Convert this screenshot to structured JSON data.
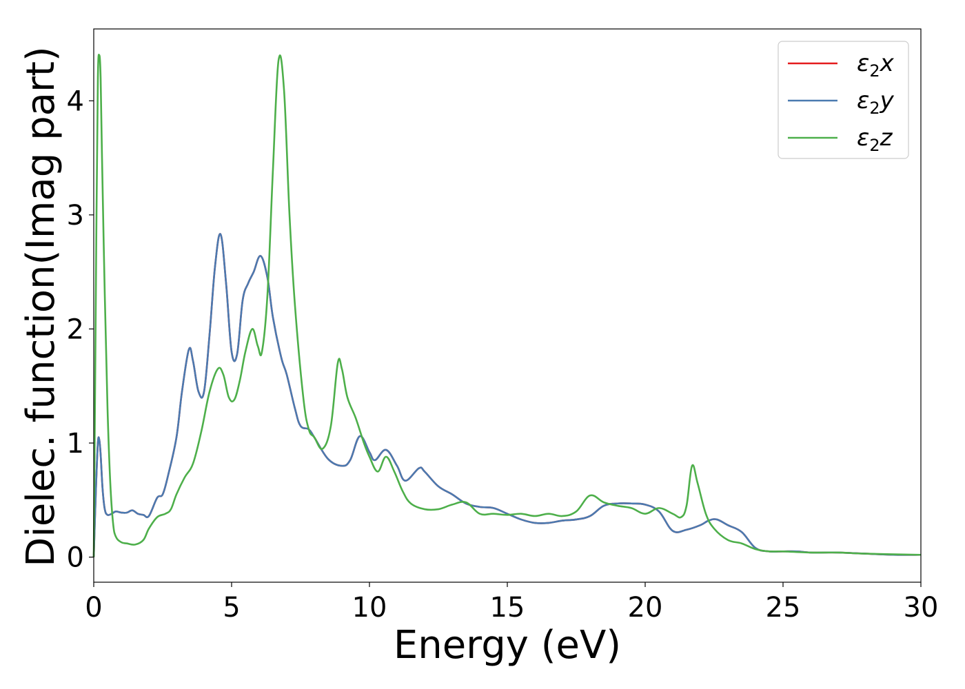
{
  "chart_data": {
    "type": "line",
    "title": "",
    "xlabel": "Energy (eV)",
    "ylabel": "Dielec. function(Imag part)",
    "xlim": [
      0,
      30
    ],
    "ylim": [
      -0.22,
      4.63
    ],
    "xticks": [
      0,
      5,
      10,
      15,
      20,
      25,
      30
    ],
    "yticks": [
      0,
      1,
      2,
      3,
      4
    ],
    "grid": false,
    "legend_position": "top-right",
    "series": [
      {
        "name": "ε₂x",
        "legend_base": "ε",
        "legend_sub": "2",
        "legend_suffix": "x",
        "color": "#e41a1c",
        "x": [
          0,
          0.08,
          0.15,
          0.2,
          0.25,
          0.32,
          0.4,
          0.5,
          0.65,
          0.8,
          1.0,
          1.2,
          1.4,
          1.6,
          1.8,
          2.0,
          2.3,
          2.5,
          2.7,
          3.0,
          3.2,
          3.45,
          3.6,
          3.8,
          4.0,
          4.2,
          4.4,
          4.6,
          4.8,
          5.0,
          5.2,
          5.4,
          5.6,
          5.8,
          6.05,
          6.3,
          6.5,
          6.8,
          7.0,
          7.3,
          7.5,
          7.8,
          8.0,
          8.5,
          9.0,
          9.3,
          9.65,
          10.0,
          10.2,
          10.6,
          11.0,
          11.3,
          11.8,
          12.0,
          12.5,
          13.0,
          13.5,
          14.0,
          14.5,
          15.0,
          15.5,
          16.0,
          16.5,
          17.0,
          17.5,
          18.0,
          18.5,
          19.0,
          19.5,
          20.0,
          20.5,
          21.0,
          21.5,
          22.0,
          22.3,
          22.6,
          23.0,
          23.5,
          24.0,
          24.5,
          25.0,
          25.5,
          26.0,
          26.5,
          27.0,
          28.0,
          29.0,
          30.0
        ],
        "y": [
          0,
          0.6,
          1.0,
          1.03,
          0.9,
          0.6,
          0.42,
          0.37,
          0.38,
          0.4,
          0.39,
          0.39,
          0.41,
          0.38,
          0.37,
          0.36,
          0.52,
          0.55,
          0.72,
          1.05,
          1.45,
          1.82,
          1.72,
          1.45,
          1.45,
          1.95,
          2.55,
          2.83,
          2.4,
          1.8,
          1.78,
          2.25,
          2.4,
          2.5,
          2.64,
          2.45,
          2.1,
          1.75,
          1.6,
          1.3,
          1.15,
          1.12,
          1.05,
          0.86,
          0.8,
          0.85,
          1.06,
          0.92,
          0.85,
          0.94,
          0.8,
          0.67,
          0.78,
          0.75,
          0.62,
          0.55,
          0.47,
          0.44,
          0.43,
          0.38,
          0.33,
          0.3,
          0.3,
          0.32,
          0.33,
          0.36,
          0.45,
          0.47,
          0.47,
          0.46,
          0.4,
          0.23,
          0.24,
          0.28,
          0.32,
          0.33,
          0.28,
          0.22,
          0.08,
          0.05,
          0.05,
          0.05,
          0.04,
          0.04,
          0.04,
          0.03,
          0.02,
          0.02
        ]
      },
      {
        "name": "ε₂y",
        "legend_base": "ε",
        "legend_sub": "2",
        "legend_suffix": "y",
        "color": "#4a7ab0",
        "x": [
          0,
          0.08,
          0.15,
          0.2,
          0.25,
          0.32,
          0.4,
          0.5,
          0.65,
          0.8,
          1.0,
          1.2,
          1.4,
          1.6,
          1.8,
          2.0,
          2.3,
          2.5,
          2.7,
          3.0,
          3.2,
          3.45,
          3.6,
          3.8,
          4.0,
          4.2,
          4.4,
          4.6,
          4.8,
          5.0,
          5.2,
          5.4,
          5.6,
          5.8,
          6.05,
          6.3,
          6.5,
          6.8,
          7.0,
          7.3,
          7.5,
          7.8,
          8.0,
          8.5,
          9.0,
          9.3,
          9.65,
          10.0,
          10.2,
          10.6,
          11.0,
          11.3,
          11.8,
          12.0,
          12.5,
          13.0,
          13.5,
          14.0,
          14.5,
          15.0,
          15.5,
          16.0,
          16.5,
          17.0,
          17.5,
          18.0,
          18.5,
          19.0,
          19.5,
          20.0,
          20.5,
          21.0,
          21.5,
          22.0,
          22.3,
          22.6,
          23.0,
          23.5,
          24.0,
          24.5,
          25.0,
          25.5,
          26.0,
          26.5,
          27.0,
          28.0,
          29.0,
          30.0
        ],
        "y": [
          0,
          0.6,
          1.0,
          1.03,
          0.9,
          0.6,
          0.42,
          0.37,
          0.38,
          0.4,
          0.39,
          0.39,
          0.41,
          0.38,
          0.37,
          0.36,
          0.52,
          0.55,
          0.72,
          1.05,
          1.45,
          1.82,
          1.72,
          1.45,
          1.45,
          1.95,
          2.55,
          2.83,
          2.4,
          1.8,
          1.78,
          2.25,
          2.4,
          2.5,
          2.64,
          2.45,
          2.1,
          1.75,
          1.6,
          1.3,
          1.15,
          1.12,
          1.05,
          0.86,
          0.8,
          0.85,
          1.06,
          0.92,
          0.85,
          0.94,
          0.8,
          0.67,
          0.78,
          0.75,
          0.62,
          0.55,
          0.47,
          0.44,
          0.43,
          0.38,
          0.33,
          0.3,
          0.3,
          0.32,
          0.33,
          0.36,
          0.45,
          0.47,
          0.47,
          0.46,
          0.4,
          0.23,
          0.24,
          0.28,
          0.32,
          0.33,
          0.28,
          0.22,
          0.08,
          0.05,
          0.05,
          0.05,
          0.04,
          0.04,
          0.04,
          0.03,
          0.02,
          0.02
        ]
      },
      {
        "name": "ε₂z",
        "legend_base": "ε",
        "legend_sub": "2",
        "legend_suffix": "z",
        "color": "#4daf4a",
        "x": [
          0,
          0.05,
          0.1,
          0.15,
          0.2,
          0.25,
          0.3,
          0.4,
          0.5,
          0.6,
          0.7,
          0.8,
          1.0,
          1.2,
          1.5,
          1.8,
          2.0,
          2.3,
          2.6,
          2.8,
          3.0,
          3.3,
          3.6,
          3.9,
          4.2,
          4.5,
          4.7,
          4.9,
          5.1,
          5.3,
          5.5,
          5.75,
          5.95,
          6.1,
          6.3,
          6.5,
          6.7,
          6.9,
          7.1,
          7.3,
          7.6,
          7.8,
          8.0,
          8.3,
          8.6,
          8.85,
          9.0,
          9.2,
          9.5,
          9.8,
          10.0,
          10.3,
          10.6,
          10.9,
          11.2,
          11.5,
          12.0,
          12.5,
          13.0,
          13.5,
          14.0,
          14.5,
          15.0,
          15.5,
          16.0,
          16.5,
          17.0,
          17.5,
          18.0,
          18.5,
          19.0,
          19.5,
          20.0,
          20.5,
          21.0,
          21.3,
          21.5,
          21.7,
          21.9,
          22.2,
          22.5,
          23.0,
          23.5,
          24.0,
          24.5,
          25.0,
          26.0,
          27.0,
          28.0,
          30.0
        ],
        "y": [
          0,
          1.5,
          3.0,
          4.2,
          4.4,
          4.2,
          3.5,
          2.3,
          1.3,
          0.65,
          0.3,
          0.18,
          0.13,
          0.12,
          0.11,
          0.15,
          0.25,
          0.35,
          0.38,
          0.42,
          0.55,
          0.7,
          0.82,
          1.1,
          1.45,
          1.65,
          1.6,
          1.4,
          1.38,
          1.55,
          1.8,
          2.0,
          1.85,
          1.8,
          2.3,
          3.4,
          4.35,
          4.1,
          3.0,
          2.2,
          1.4,
          1.12,
          1.05,
          0.95,
          1.15,
          1.7,
          1.65,
          1.4,
          1.22,
          1.0,
          0.88,
          0.75,
          0.88,
          0.75,
          0.58,
          0.47,
          0.42,
          0.42,
          0.46,
          0.48,
          0.38,
          0.38,
          0.37,
          0.38,
          0.36,
          0.38,
          0.36,
          0.4,
          0.54,
          0.48,
          0.45,
          0.43,
          0.38,
          0.43,
          0.38,
          0.35,
          0.45,
          0.8,
          0.65,
          0.38,
          0.25,
          0.15,
          0.12,
          0.07,
          0.05,
          0.05,
          0.04,
          0.04,
          0.03,
          0.02
        ]
      }
    ]
  }
}
